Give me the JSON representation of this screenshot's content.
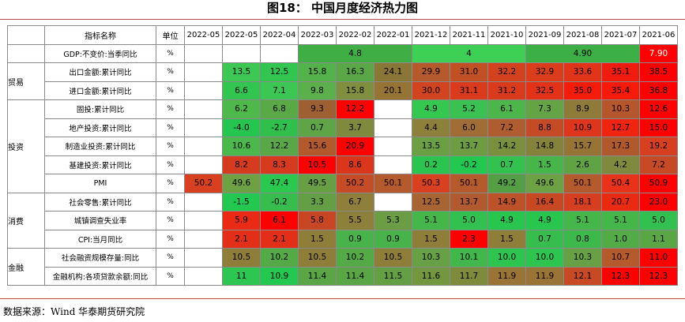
{
  "title": "图18：  中国月度经济热力图",
  "source": "数据来源：Wind  华泰期货研究院",
  "table": {
    "header": [
      "",
      "指标名称",
      "单位",
      "2022-05",
      "2022-05",
      "2022-04",
      "2022-03",
      "2022-02",
      "2022-01",
      "2021-12",
      "2021-11",
      "2021-10",
      "2021-09",
      "2021-08",
      "2021-07",
      "2021-06"
    ],
    "categories": [
      {
        "label": "",
        "rowspan": 1
      },
      {
        "label": "贸易",
        "rowspan": 2
      },
      {
        "label": "投资",
        "rowspan": 5
      },
      {
        "label": "消费",
        "rowspan": 3
      },
      {
        "label": "金融",
        "rowspan": 2
      }
    ],
    "rows": [
      {
        "name": "GDP:不变价:当季同比",
        "unit": "%",
        "cells": [
          {
            "v": "",
            "span": 1,
            "bg": "#ffffff"
          },
          {
            "v": "",
            "span": 1,
            "bg": "#ffffff"
          },
          {
            "v": "",
            "span": 1,
            "bg": "#ffffff"
          },
          {
            "v": "4.8",
            "span": 3,
            "bg": "#3faf45"
          },
          {
            "v": "4",
            "span": 3,
            "bg": "#3ecf55"
          },
          {
            "v": "4.90",
            "span": 3,
            "bg": "#3caf47"
          },
          {
            "v": "7.90",
            "span": 1,
            "bg": "#ff0000",
            "fg": "#ffffff"
          }
        ]
      },
      {
        "name": "出口金额:累计同比",
        "unit": "%",
        "cells": [
          {
            "v": "",
            "span": 1,
            "bg": "#ffffff"
          },
          {
            "v": "13.5",
            "span": 1,
            "bg": "#3cc853"
          },
          {
            "v": "12.5",
            "span": 1,
            "bg": "#32c651"
          },
          {
            "v": "15.8",
            "span": 1,
            "bg": "#53b249"
          },
          {
            "v": "16.3",
            "span": 1,
            "bg": "#5aa747"
          },
          {
            "v": "24.1",
            "span": 1,
            "bg": "#8a7636"
          },
          {
            "v": "29.9",
            "span": 1,
            "bg": "#b45a2d"
          },
          {
            "v": "31.0",
            "span": 1,
            "bg": "#c25025"
          },
          {
            "v": "32.2",
            "span": 1,
            "bg": "#d2421f"
          },
          {
            "v": "32.9",
            "span": 1,
            "bg": "#da3c1c"
          },
          {
            "v": "33.6",
            "span": 1,
            "bg": "#e23418"
          },
          {
            "v": "35.1",
            "span": 1,
            "bg": "#f01c0f"
          },
          {
            "v": "38.5",
            "span": 1,
            "bg": "#ff0000"
          }
        ]
      },
      {
        "name": "进口金额:累计同比",
        "unit": "%",
        "cells": [
          {
            "v": "",
            "span": 1,
            "bg": "#ffffff"
          },
          {
            "v": "6.6",
            "span": 1,
            "bg": "#32c651"
          },
          {
            "v": "7.1",
            "span": 1,
            "bg": "#3cc653"
          },
          {
            "v": "9.8",
            "span": 1,
            "bg": "#5cb04b"
          },
          {
            "v": "15.8",
            "span": 1,
            "bg": "#7f8f3f"
          },
          {
            "v": "20.1",
            "span": 1,
            "bg": "#957436"
          },
          {
            "v": "30.0",
            "span": 1,
            "bg": "#d2441f"
          },
          {
            "v": "31.1",
            "span": 1,
            "bg": "#da3b1c"
          },
          {
            "v": "31.2",
            "span": 1,
            "bg": "#da3b1c"
          },
          {
            "v": "32.5",
            "span": 1,
            "bg": "#e23318"
          },
          {
            "v": "35.0",
            "span": 1,
            "bg": "#f51c0c"
          },
          {
            "v": "35.4",
            "span": 1,
            "bg": "#f81a0a"
          },
          {
            "v": "36.8",
            "span": 1,
            "bg": "#ff0000"
          }
        ]
      },
      {
        "name": "固投:累计同比",
        "unit": "%",
        "cells": [
          {
            "v": "",
            "span": 1,
            "bg": "#ffffff"
          },
          {
            "v": "6.2",
            "span": 1,
            "bg": "#4fb84b"
          },
          {
            "v": "6.8",
            "span": 1,
            "bg": "#5aa947"
          },
          {
            "v": "9.3",
            "span": 1,
            "bg": "#9e5f32"
          },
          {
            "v": "12.2",
            "span": 1,
            "bg": "#ff0000"
          },
          {
            "v": "",
            "span": 1,
            "bg": "#ffffff"
          },
          {
            "v": "4.9",
            "span": 1,
            "bg": "#35c850"
          },
          {
            "v": "5.2",
            "span": 1,
            "bg": "#39c151"
          },
          {
            "v": "6.1",
            "span": 1,
            "bg": "#4db64b"
          },
          {
            "v": "7.3",
            "span": 1,
            "bg": "#65a445"
          },
          {
            "v": "8.9",
            "span": 1,
            "bg": "#8f7a3a"
          },
          {
            "v": "10.3",
            "span": 1,
            "bg": "#b6562c"
          },
          {
            "v": "12.6",
            "span": 1,
            "bg": "#ff0000"
          }
        ]
      },
      {
        "name": "地产投资:累计同比",
        "unit": "%",
        "cells": [
          {
            "v": "",
            "span": 1,
            "bg": "#ffffff"
          },
          {
            "v": "-4.0",
            "span": 1,
            "bg": "#24c64f"
          },
          {
            "v": "-2.7",
            "span": 1,
            "bg": "#30bf4c"
          },
          {
            "v": "0.7",
            "span": 1,
            "bg": "#5fa446"
          },
          {
            "v": "3.7",
            "span": 1,
            "bg": "#7f8a3f"
          },
          {
            "v": "",
            "span": 1,
            "bg": "#ffffff"
          },
          {
            "v": "4.4",
            "span": 1,
            "bg": "#8c803b"
          },
          {
            "v": "6.0",
            "span": 1,
            "bg": "#9f6d35"
          },
          {
            "v": "7.2",
            "span": 1,
            "bg": "#af5d30"
          },
          {
            "v": "8.8",
            "span": 1,
            "bg": "#c54b27"
          },
          {
            "v": "10.9",
            "span": 1,
            "bg": "#dd361c"
          },
          {
            "v": "12.7",
            "span": 1,
            "bg": "#ef2511"
          },
          {
            "v": "15.0",
            "span": 1,
            "bg": "#ff0000"
          }
        ]
      },
      {
        "name": "制造业投资:累计同比",
        "unit": "%",
        "cells": [
          {
            "v": "",
            "span": 1,
            "bg": "#ffffff"
          },
          {
            "v": "10.6",
            "span": 1,
            "bg": "#4ab84b"
          },
          {
            "v": "12.2",
            "span": 1,
            "bg": "#5aa747"
          },
          {
            "v": "15.6",
            "span": 1,
            "bg": "#b25a2e"
          },
          {
            "v": "20.9",
            "span": 1,
            "bg": "#ff0000"
          },
          {
            "v": "",
            "span": 1,
            "bg": "#ffffff"
          },
          {
            "v": "13.5",
            "span": 1,
            "bg": "#6a9f44"
          },
          {
            "v": "13.7",
            "span": 1,
            "bg": "#6d9c43"
          },
          {
            "v": "14.2",
            "span": 1,
            "bg": "#79903f"
          },
          {
            "v": "14.8",
            "span": 1,
            "bg": "#85833b"
          },
          {
            "v": "15.7",
            "span": 1,
            "bg": "#957435"
          },
          {
            "v": "17.3",
            "span": 1,
            "bg": "#b0592d"
          },
          {
            "v": "19.2",
            "span": 1,
            "bg": "#d63f20"
          }
        ]
      },
      {
        "name": "基建投资:累计同比",
        "unit": "%",
        "cells": [
          {
            "v": "",
            "span": 1,
            "bg": "#ffffff"
          },
          {
            "v": "8.2",
            "span": 1,
            "bg": "#d43b1f"
          },
          {
            "v": "8.3",
            "span": 1,
            "bg": "#d63a1f"
          },
          {
            "v": "10.5",
            "span": 1,
            "bg": "#ff0000"
          },
          {
            "v": "8.6",
            "span": 1,
            "bg": "#da361c"
          },
          {
            "v": "",
            "span": 1,
            "bg": "#ffffff"
          },
          {
            "v": "0.2",
            "span": 1,
            "bg": "#2ac44f"
          },
          {
            "v": "-0.2",
            "span": 1,
            "bg": "#22c84f"
          },
          {
            "v": "0.7",
            "span": 1,
            "bg": "#33c150"
          },
          {
            "v": "1.5",
            "span": 1,
            "bg": "#46b54a"
          },
          {
            "v": "2.6",
            "span": 1,
            "bg": "#5fa345"
          },
          {
            "v": "4.2",
            "span": 1,
            "bg": "#808a3e"
          },
          {
            "v": "7.2",
            "span": 1,
            "bg": "#c64a26"
          }
        ]
      },
      {
        "name": "PMI",
        "unit": "%",
        "cells": [
          {
            "v": "50.2",
            "span": 1,
            "bg": "#d8401f"
          },
          {
            "v": "49.6",
            "span": 1,
            "bg": "#6ea143"
          },
          {
            "v": "47.4",
            "span": 1,
            "bg": "#2ac84f"
          },
          {
            "v": "49.5",
            "span": 1,
            "bg": "#689f44"
          },
          {
            "v": "50.2",
            "span": 1,
            "bg": "#c54c27"
          },
          {
            "v": "50.1",
            "span": 1,
            "bg": "#b55a2c"
          },
          {
            "v": "50.3",
            "span": 1,
            "bg": "#d8401f"
          },
          {
            "v": "50.1",
            "span": 1,
            "bg": "#b55a2c"
          },
          {
            "v": "49.2",
            "span": 1,
            "bg": "#549f46"
          },
          {
            "v": "49.6",
            "span": 1,
            "bg": "#6ea143"
          },
          {
            "v": "50.1",
            "span": 1,
            "bg": "#b55a2c"
          },
          {
            "v": "50.4",
            "span": 1,
            "bg": "#e8321a"
          },
          {
            "v": "50.9",
            "span": 1,
            "bg": "#ff0000"
          }
        ]
      },
      {
        "name": "社会零售:累计同比",
        "unit": "%",
        "cells": [
          {
            "v": "",
            "span": 1,
            "bg": "#ffffff"
          },
          {
            "v": "-1.5",
            "span": 1,
            "bg": "#22c84f"
          },
          {
            "v": "-0.2",
            "span": 1,
            "bg": "#36bd4d"
          },
          {
            "v": "3.3",
            "span": 1,
            "bg": "#659f45"
          },
          {
            "v": "6.7",
            "span": 1,
            "bg": "#8e803b"
          },
          {
            "v": "",
            "span": 1,
            "bg": "#ffffff"
          },
          {
            "v": "12.5",
            "span": 1,
            "bg": "#a86433"
          },
          {
            "v": "13.7",
            "span": 1,
            "bg": "#b25a2f"
          },
          {
            "v": "14.9",
            "span": 1,
            "bg": "#bd5129"
          },
          {
            "v": "16.4",
            "span": 1,
            "bg": "#c94824"
          },
          {
            "v": "18.1",
            "span": 1,
            "bg": "#d73d1f"
          },
          {
            "v": "20.7",
            "span": 1,
            "bg": "#eb2a14"
          },
          {
            "v": "23.0",
            "span": 1,
            "bg": "#ff0000"
          }
        ]
      },
      {
        "name": "城镇调查失业率",
        "unit": "%",
        "cells": [
          {
            "v": "",
            "span": 1,
            "bg": "#ffffff"
          },
          {
            "v": "5.9",
            "span": 1,
            "bg": "#ea2a14"
          },
          {
            "v": "6.1",
            "span": 1,
            "bg": "#ff0000"
          },
          {
            "v": "5.8",
            "span": 1,
            "bg": "#c94624"
          },
          {
            "v": "5.5",
            "span": 1,
            "bg": "#8c803b"
          },
          {
            "v": "5.3",
            "span": 1,
            "bg": "#6b9e44"
          },
          {
            "v": "5.1",
            "span": 1,
            "bg": "#45b64a"
          },
          {
            "v": "5.0",
            "span": 1,
            "bg": "#32c151"
          },
          {
            "v": "4.9",
            "span": 1,
            "bg": "#28c64f"
          },
          {
            "v": "4.9",
            "span": 1,
            "bg": "#28c64f"
          },
          {
            "v": "5.1",
            "span": 1,
            "bg": "#45b64a"
          },
          {
            "v": "5.1",
            "span": 1,
            "bg": "#45b64a"
          },
          {
            "v": "5.0",
            "span": 1,
            "bg": "#32c151"
          }
        ]
      },
      {
        "name": "CPI:当月同比",
        "unit": "%",
        "cells": [
          {
            "v": "",
            "span": 1,
            "bg": "#ffffff"
          },
          {
            "v": "2.1",
            "span": 1,
            "bg": "#e32f17"
          },
          {
            "v": "2.1",
            "span": 1,
            "bg": "#e32f17"
          },
          {
            "v": "1.5",
            "span": 1,
            "bg": "#8e7e3a"
          },
          {
            "v": "0.9",
            "span": 1,
            "bg": "#48b34a"
          },
          {
            "v": "0.9",
            "span": 1,
            "bg": "#48b34a"
          },
          {
            "v": "1.5",
            "span": 1,
            "bg": "#8e7e3a"
          },
          {
            "v": "2.3",
            "span": 1,
            "bg": "#ff0000"
          },
          {
            "v": "1.5",
            "span": 1,
            "bg": "#8e7e3a"
          },
          {
            "v": "0.7",
            "span": 1,
            "bg": "#36bd4d"
          },
          {
            "v": "0.8",
            "span": 1,
            "bg": "#3db84b"
          },
          {
            "v": "1.0",
            "span": 1,
            "bg": "#53ab48"
          },
          {
            "v": "1.1",
            "span": 1,
            "bg": "#5aa647"
          }
        ]
      },
      {
        "name": "社会融资规模存量:同比",
        "unit": "%",
        "cells": [
          {
            "v": "",
            "span": 1,
            "bg": "#ffffff"
          },
          {
            "v": "10.5",
            "span": 1,
            "bg": "#8e7e3a"
          },
          {
            "v": "10.2",
            "span": 1,
            "bg": "#55aa48"
          },
          {
            "v": "10.5",
            "span": 1,
            "bg": "#8e7e3a"
          },
          {
            "v": "10.2",
            "span": 1,
            "bg": "#55aa48"
          },
          {
            "v": "10.5",
            "span": 1,
            "bg": "#8e7e3a"
          },
          {
            "v": "10.3",
            "span": 1,
            "bg": "#68a045"
          },
          {
            "v": "10.1",
            "span": 1,
            "bg": "#42b74b"
          },
          {
            "v": "10.0",
            "span": 1,
            "bg": "#2ec450"
          },
          {
            "v": "10.0",
            "span": 1,
            "bg": "#2ec450"
          },
          {
            "v": "10.3",
            "span": 1,
            "bg": "#68a045"
          },
          {
            "v": "10.7",
            "span": 1,
            "bg": "#b45a2d"
          },
          {
            "v": "11.0",
            "span": 1,
            "bg": "#ff0000"
          }
        ]
      },
      {
        "name": "金融机构:各项贷款余额:同比",
        "unit": "%",
        "cells": [
          {
            "v": "",
            "span": 1,
            "bg": "#ffffff"
          },
          {
            "v": "11",
            "span": 1,
            "bg": "#2cc650"
          },
          {
            "v": "10.9",
            "span": 1,
            "bg": "#22c84f"
          },
          {
            "v": "11.4",
            "span": 1,
            "bg": "#5aa647"
          },
          {
            "v": "11.4",
            "span": 1,
            "bg": "#5aa647"
          },
          {
            "v": "11.5",
            "span": 1,
            "bg": "#659f45"
          },
          {
            "v": "11.6",
            "span": 1,
            "bg": "#72973f"
          },
          {
            "v": "11.7",
            "span": 1,
            "bg": "#7e8b3d"
          },
          {
            "v": "11.9",
            "span": 1,
            "bg": "#9a7336"
          },
          {
            "v": "11.9",
            "span": 1,
            "bg": "#9a7336"
          },
          {
            "v": "12.1",
            "span": 1,
            "bg": "#c84a25"
          },
          {
            "v": "12.3",
            "span": 1,
            "bg": "#ff0000"
          },
          {
            "v": "12.3",
            "span": 1,
            "bg": "#ff0000"
          }
        ]
      }
    ]
  }
}
